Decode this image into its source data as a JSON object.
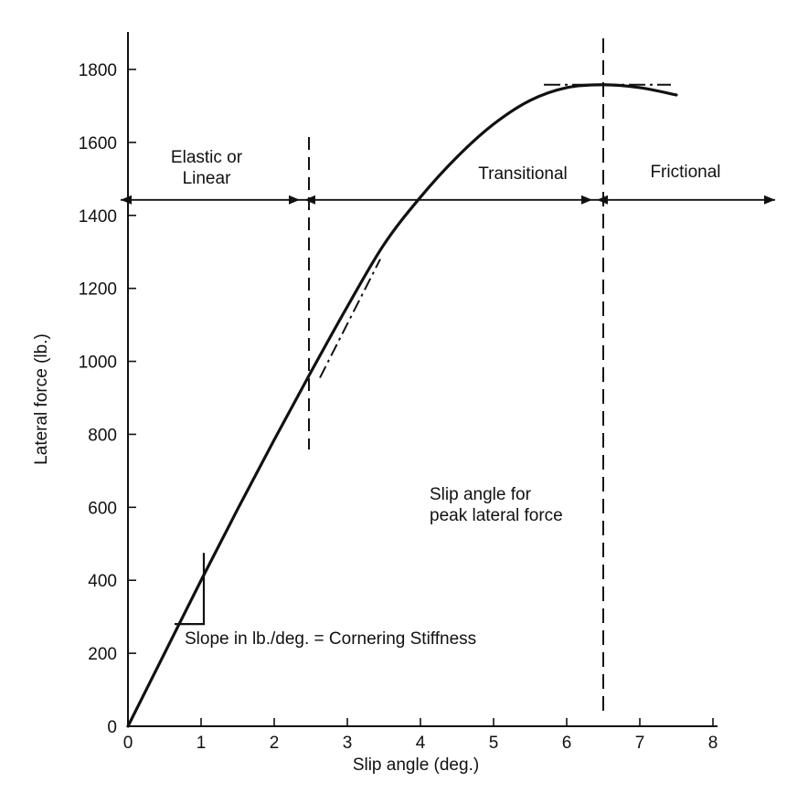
{
  "chart_data": {
    "type": "line",
    "title": "",
    "xlabel": "Slip angle (deg.)",
    "ylabel": "Lateral force (lb.)",
    "xlim": [
      0,
      8
    ],
    "ylim": [
      0,
      1900
    ],
    "x_ticks": [
      0,
      1,
      2,
      3,
      4,
      5,
      6,
      7,
      8
    ],
    "y_ticks": [
      0,
      200,
      400,
      600,
      800,
      1000,
      1200,
      1400,
      1600,
      1800
    ],
    "grid": false,
    "legend": "none",
    "series": [
      {
        "x": [
          0,
          0.5,
          1,
          1.5,
          2,
          2.5,
          3,
          3.5,
          4,
          4.5,
          5,
          5.5,
          6,
          6.5,
          7,
          7.5
        ],
        "y": [
          0,
          200,
          400,
          595,
          785,
          970,
          1150,
          1320,
          1450,
          1560,
          1650,
          1715,
          1750,
          1758,
          1750,
          1730
        ],
        "color": "#111111"
      }
    ],
    "reference_lines": {
      "linear_boundary_x": 2.5,
      "peak_slip_x": 6.5,
      "regime_arrow_y": 1450,
      "peak_force_y": 1758,
      "tangent_line": {
        "x": [
          2.5,
          3.3
        ],
        "y": [
          980,
          1280
        ]
      },
      "peak_tangent": {
        "x": [
          5.5,
          7.3
        ],
        "y": [
          1758,
          1758
        ]
      },
      "slope_triangle": {
        "x0": 0.7,
        "x1": 1.1,
        "y0": 280,
        "y1": 440
      }
    },
    "annotations": {
      "region_elastic_line1": "Elastic or",
      "region_elastic_line2": "Linear",
      "region_transitional": "Transitional",
      "region_frictional": "Frictional",
      "peak_label_line1": "Slip angle for",
      "peak_label_line2": "peak lateral force",
      "slope_label": "Slope in lb./deg. = Cornering Stiffness"
    }
  }
}
